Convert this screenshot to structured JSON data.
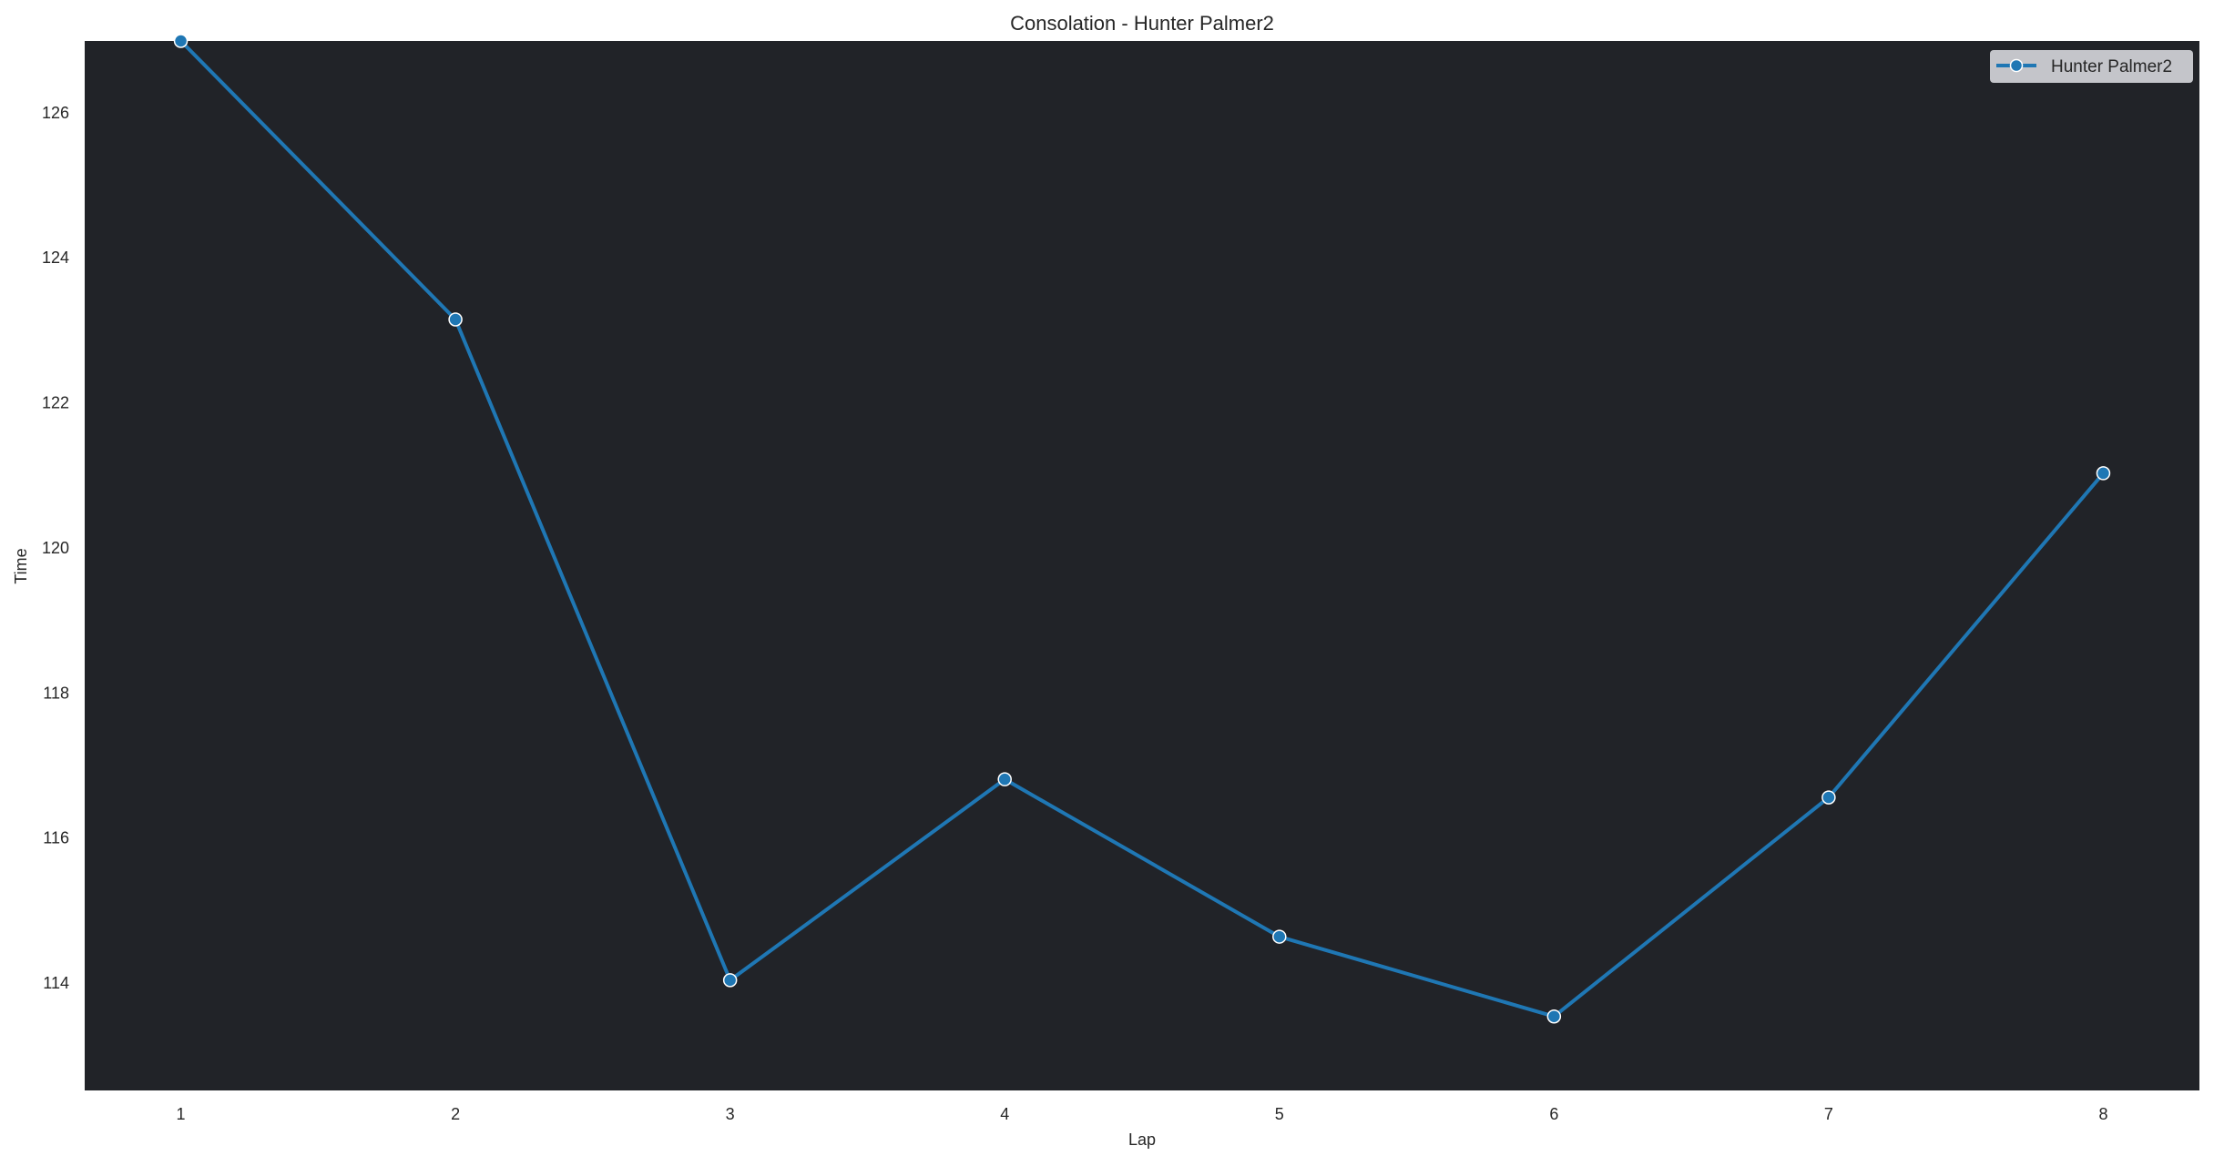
{
  "chart_data": {
    "type": "line",
    "title": "Consolation - Hunter Palmer2",
    "xlabel": "Lap",
    "ylabel": "Time",
    "x": [
      1,
      2,
      3,
      4,
      5,
      6,
      7,
      8
    ],
    "series": [
      {
        "name": "Hunter Palmer2",
        "values": [
          126.99,
          123.15,
          114.04,
          116.81,
          114.64,
          113.54,
          116.56,
          121.03
        ],
        "color": "#1f77b4"
      }
    ],
    "xticks": [
      "1",
      "2",
      "3",
      "4",
      "5",
      "6",
      "7",
      "8"
    ],
    "yticks": [
      "114",
      "116",
      "118",
      "120",
      "122",
      "124",
      "126"
    ],
    "xlim": [
      0.65,
      8.35
    ],
    "ylim": [
      112.52,
      126.99
    ],
    "grid": false,
    "legend": "top-right",
    "background_color": "#212328",
    "legend_background": "#c4c5ca"
  }
}
